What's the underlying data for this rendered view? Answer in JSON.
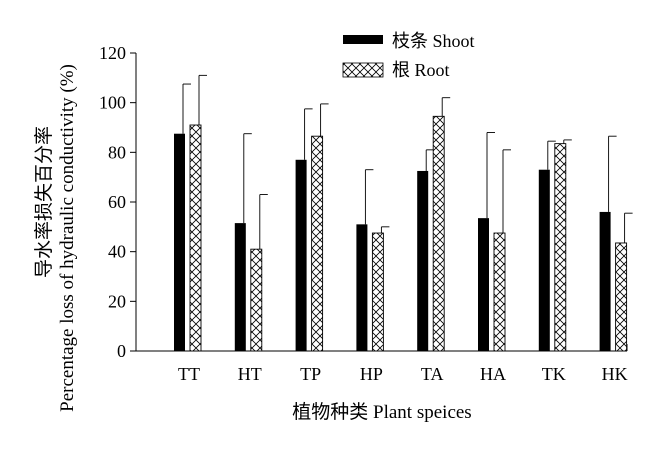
{
  "chart_data": {
    "type": "bar",
    "categories": [
      "TT",
      "HT",
      "TP",
      "HP",
      "TA",
      "HA",
      "TK",
      "HK"
    ],
    "series": [
      {
        "name": "枝条 Shoot",
        "values": [
          87.5,
          51.5,
          77,
          51,
          72.5,
          53.5,
          73,
          56
        ],
        "errors": [
          20,
          36,
          20.5,
          22,
          8.5,
          34.5,
          11.5,
          30.5
        ],
        "fill": "solid-black"
      },
      {
        "name": "根 Root",
        "values": [
          91,
          41,
          86.5,
          47.5,
          94.5,
          47.5,
          83.5,
          43.5
        ],
        "errors": [
          20,
          22,
          13,
          2.5,
          7.5,
          33.5,
          1.5,
          12
        ],
        "fill": "crosshatch"
      }
    ],
    "xlabel": "植物种类 Plant speices",
    "ylabel_cn": "导水率损失百分率",
    "ylabel_en": "Percentage loss of hydraulic conductivity (%)",
    "ylim": [
      0,
      120
    ],
    "yticks": [
      0,
      20,
      40,
      60,
      80,
      100,
      120
    ],
    "grid": false,
    "legend_position": "top-center",
    "colors": {
      "bar_fill": "#000000",
      "axis": "#000000",
      "background": "#ffffff"
    }
  }
}
